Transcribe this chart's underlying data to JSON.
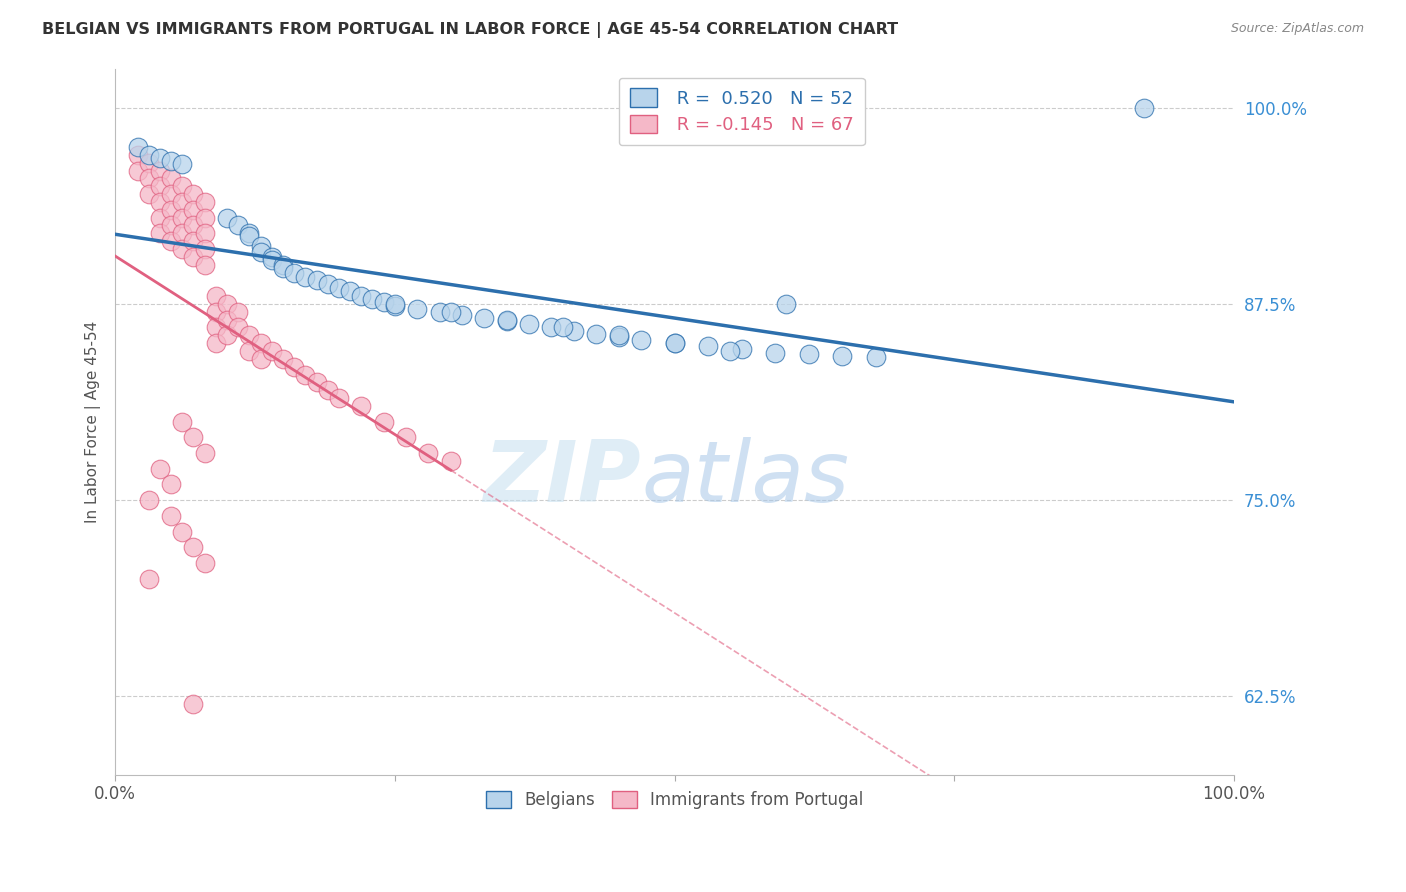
{
  "title": "BELGIAN VS IMMIGRANTS FROM PORTUGAL IN LABOR FORCE | AGE 45-54 CORRELATION CHART",
  "source": "Source: ZipAtlas.com",
  "ylabel": "In Labor Force | Age 45-54",
  "x_min": 0.0,
  "x_max": 1.0,
  "y_min": 0.575,
  "y_max": 1.025,
  "x_tick_labels": [
    "0.0%",
    "100.0%"
  ],
  "x_tick_vals": [
    0.0,
    1.0
  ],
  "y_tick_labels": [
    "62.5%",
    "75.0%",
    "87.5%",
    "100.0%"
  ],
  "y_tick_vals": [
    0.625,
    0.75,
    0.875,
    1.0
  ],
  "belgian_color": "#b8d4eb",
  "portugal_color": "#f5b8c8",
  "belgian_line_color": "#2c6fad",
  "portugal_line_color": "#e06080",
  "watermark_zip": "ZIP",
  "watermark_atlas": "atlas",
  "legend_r_belgian": "R =  0.520",
  "legend_n_belgian": "N = 52",
  "legend_r_portugal": "R = -0.145",
  "legend_n_portugal": "N = 67",
  "belgian_x": [
    0.02,
    0.03,
    0.04,
    0.05,
    0.06,
    0.1,
    0.11,
    0.12,
    0.12,
    0.13,
    0.13,
    0.14,
    0.14,
    0.15,
    0.15,
    0.16,
    0.17,
    0.18,
    0.19,
    0.2,
    0.21,
    0.22,
    0.23,
    0.24,
    0.25,
    0.27,
    0.29,
    0.31,
    0.33,
    0.35,
    0.37,
    0.39,
    0.41,
    0.43,
    0.45,
    0.47,
    0.5,
    0.53,
    0.56,
    0.59,
    0.62,
    0.65,
    0.68,
    0.25,
    0.3,
    0.35,
    0.4,
    0.45,
    0.5,
    0.55,
    0.92,
    0.6
  ],
  "belgian_y": [
    0.975,
    0.97,
    0.968,
    0.966,
    0.964,
    0.93,
    0.925,
    0.92,
    0.918,
    0.912,
    0.908,
    0.905,
    0.903,
    0.9,
    0.898,
    0.895,
    0.892,
    0.89,
    0.888,
    0.885,
    0.883,
    0.88,
    0.878,
    0.876,
    0.874,
    0.872,
    0.87,
    0.868,
    0.866,
    0.864,
    0.862,
    0.86,
    0.858,
    0.856,
    0.854,
    0.852,
    0.85,
    0.848,
    0.846,
    0.844,
    0.843,
    0.842,
    0.841,
    0.875,
    0.87,
    0.865,
    0.86,
    0.855,
    0.85,
    0.845,
    1.0,
    0.875
  ],
  "portugal_x": [
    0.02,
    0.02,
    0.03,
    0.03,
    0.03,
    0.04,
    0.04,
    0.04,
    0.04,
    0.04,
    0.05,
    0.05,
    0.05,
    0.05,
    0.05,
    0.06,
    0.06,
    0.06,
    0.06,
    0.06,
    0.07,
    0.07,
    0.07,
    0.07,
    0.07,
    0.08,
    0.08,
    0.08,
    0.08,
    0.08,
    0.09,
    0.09,
    0.09,
    0.09,
    0.1,
    0.1,
    0.1,
    0.11,
    0.11,
    0.12,
    0.12,
    0.13,
    0.13,
    0.14,
    0.15,
    0.16,
    0.17,
    0.18,
    0.19,
    0.2,
    0.22,
    0.24,
    0.26,
    0.28,
    0.3,
    0.06,
    0.07,
    0.08,
    0.04,
    0.05,
    0.03,
    0.05,
    0.06,
    0.07,
    0.08,
    0.03,
    0.07
  ],
  "portugal_y": [
    0.97,
    0.96,
    0.965,
    0.955,
    0.945,
    0.96,
    0.95,
    0.94,
    0.93,
    0.92,
    0.955,
    0.945,
    0.935,
    0.925,
    0.915,
    0.95,
    0.94,
    0.93,
    0.92,
    0.91,
    0.945,
    0.935,
    0.925,
    0.915,
    0.905,
    0.94,
    0.93,
    0.92,
    0.91,
    0.9,
    0.88,
    0.87,
    0.86,
    0.85,
    0.875,
    0.865,
    0.855,
    0.87,
    0.86,
    0.855,
    0.845,
    0.85,
    0.84,
    0.845,
    0.84,
    0.835,
    0.83,
    0.825,
    0.82,
    0.815,
    0.81,
    0.8,
    0.79,
    0.78,
    0.775,
    0.8,
    0.79,
    0.78,
    0.77,
    0.76,
    0.75,
    0.74,
    0.73,
    0.72,
    0.71,
    0.7,
    0.62
  ]
}
